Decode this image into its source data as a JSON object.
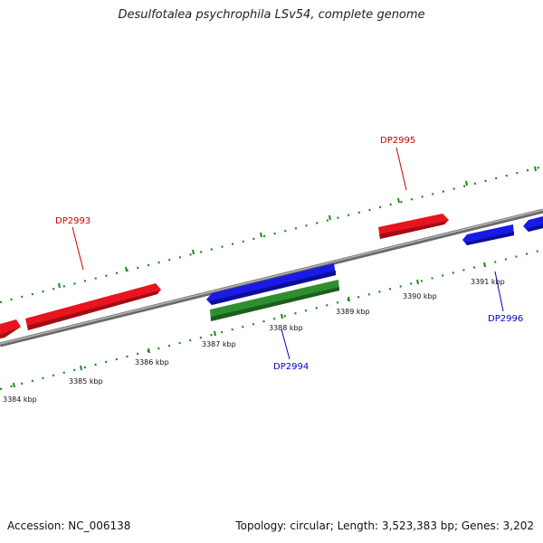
{
  "title": "Desulfotalea psychrophila LSv54, complete genome",
  "footer": {
    "accession": "Accession: NC_006138",
    "topology": "Topology: circular; Length: 3,523,383 bp; Genes: 3,202"
  },
  "colors": {
    "forward_gene": "#e8141e",
    "reverse_gene": "#1a1ae6",
    "rna_gene": "#2f8f2f",
    "backbone": "#808080",
    "ticks": "#1a8a1a",
    "forward_label": "#cc0000",
    "reverse_label": "#0000cc"
  },
  "ticks": [
    {
      "label": "3384 kbp"
    },
    {
      "label": "3385 kbp"
    },
    {
      "label": "3386 kbp"
    },
    {
      "label": "3387 kbp"
    },
    {
      "label": "3388 kbp"
    },
    {
      "label": "3389 kbp"
    },
    {
      "label": "3390 kbp"
    },
    {
      "label": "3391 kbp"
    }
  ],
  "genes": [
    {
      "name": "DP2993",
      "strand": "forward"
    },
    {
      "name": "DP2994",
      "strand": "reverse"
    },
    {
      "name": "DP2995",
      "strand": "forward"
    },
    {
      "name": "DP2996",
      "strand": "reverse"
    }
  ]
}
